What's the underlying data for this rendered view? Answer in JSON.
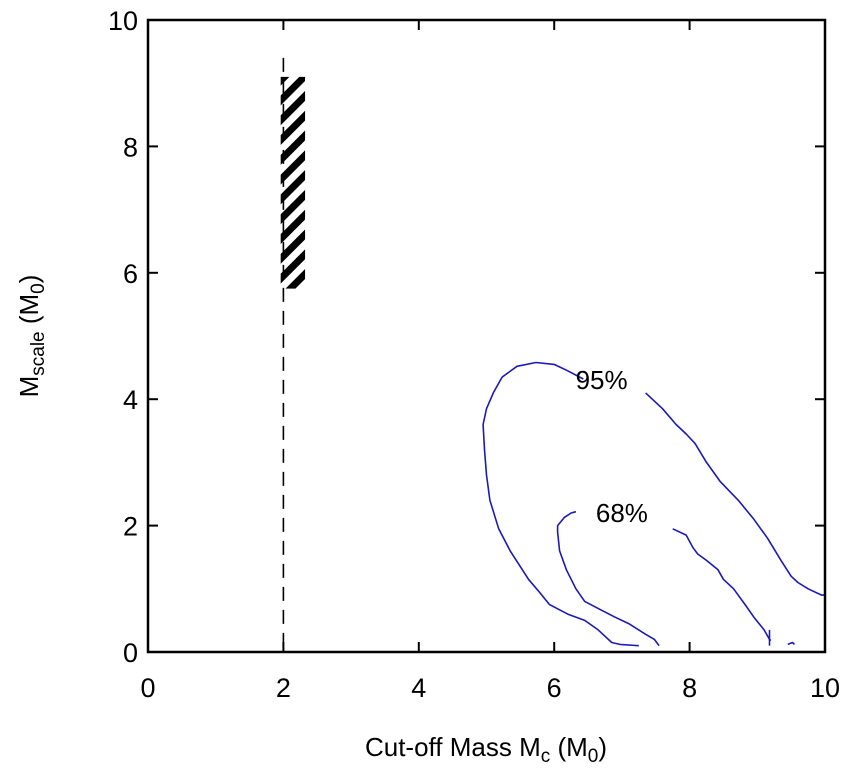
{
  "chart_data": {
    "type": "line",
    "xlabel": "Cut-off Mass M",
    "xlabel_sub": "c",
    "xlabel_unit_open": " (M",
    "xlabel_unit_sub": "0",
    "xlabel_unit_close": ")",
    "ylabel": "M",
    "ylabel_sub": "scale",
    "ylabel_unit_open": " (M",
    "ylabel_unit_sub": "0",
    "ylabel_unit_close": ")",
    "xlim": [
      0,
      10
    ],
    "ylim": [
      0,
      10
    ],
    "xticks": [
      "0",
      "2",
      "4",
      "6",
      "8",
      "10"
    ],
    "yticks": [
      "0",
      "2",
      "4",
      "6",
      "8",
      "10"
    ],
    "grid": false,
    "colors": {
      "contour": "#1a1ab8",
      "frame": "#000000"
    },
    "cutoff_line": {
      "x": 2.0,
      "y_range": [
        0.15,
        9.4
      ],
      "style": "dashed"
    },
    "hatched_region": {
      "x_range": [
        1.96,
        2.32
      ],
      "y_range": [
        5.75,
        9.1
      ]
    },
    "series": [
      {
        "name": "95%",
        "label_at": [
          6.7,
          4.3
        ],
        "x": [
          7.25,
          6.97,
          6.85,
          6.65,
          6.45,
          6.2,
          5.93,
          5.78,
          5.62,
          5.35,
          5.18,
          5.05,
          5.0,
          4.97,
          4.95,
          5.0,
          5.1,
          5.23,
          5.45,
          5.73,
          6.0,
          6.2,
          6.43
        ],
        "y": [
          0.1,
          0.12,
          0.15,
          0.35,
          0.5,
          0.6,
          0.75,
          0.95,
          1.15,
          1.6,
          1.95,
          2.4,
          2.8,
          3.2,
          3.6,
          3.85,
          4.1,
          4.35,
          4.52,
          4.58,
          4.55,
          4.45,
          4.32
        ]
      },
      {
        "name": "95%",
        "x": [
          7.35,
          7.6,
          7.8,
          7.95,
          8.08,
          8.25,
          8.45,
          8.72,
          8.95,
          9.15,
          9.35,
          9.5,
          9.6,
          9.75,
          9.95,
          10.0
        ],
        "y": [
          4.1,
          3.85,
          3.6,
          3.45,
          3.3,
          3.0,
          2.7,
          2.4,
          2.1,
          1.8,
          1.45,
          1.2,
          1.1,
          1.0,
          0.9,
          0.9
        ]
      },
      {
        "name": "68%",
        "label_at": [
          7.0,
          2.2
        ],
        "x": [
          7.55,
          7.48,
          7.35,
          7.1,
          6.9,
          6.72,
          6.45,
          6.32,
          6.18,
          6.08,
          6.05,
          6.05,
          6.15,
          6.25,
          6.32
        ],
        "y": [
          0.1,
          0.2,
          0.28,
          0.45,
          0.55,
          0.65,
          0.8,
          1.0,
          1.3,
          1.6,
          1.9,
          2.0,
          2.13,
          2.2,
          2.22
        ]
      },
      {
        "name": "68%",
        "x": [
          7.75,
          7.95,
          8.05,
          8.12,
          8.25,
          8.42,
          8.5,
          8.65,
          8.82,
          8.95,
          9.1,
          9.18,
          9.2
        ],
        "y": [
          1.95,
          1.85,
          1.65,
          1.55,
          1.45,
          1.3,
          1.15,
          1.0,
          0.75,
          0.55,
          0.35,
          0.2,
          0.18
        ]
      },
      {
        "name": "68%",
        "x": [
          9.18,
          9.18
        ],
        "y": [
          0.1,
          0.35
        ]
      },
      {
        "name": "68%",
        "x": [
          9.45,
          9.52,
          9.55
        ],
        "y": [
          0.12,
          0.15,
          0.12
        ]
      }
    ]
  }
}
